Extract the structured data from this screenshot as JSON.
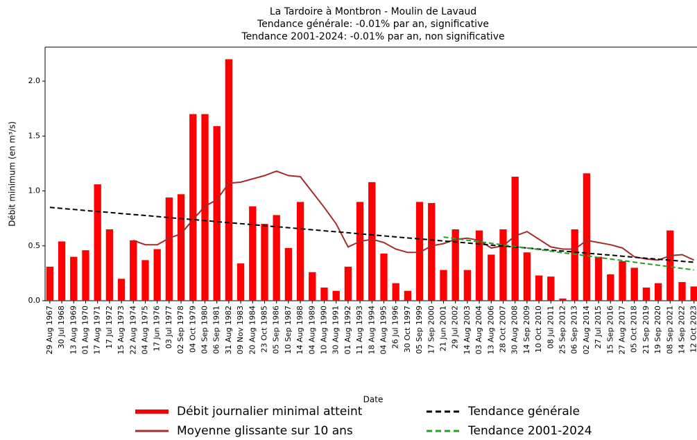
{
  "chart_data": {
    "type": "bar",
    "title": "La Tardoire à Montbron - Moulin de Lavaud",
    "subtitle": [
      "Tendance générale: -0.01% par an, significative",
      "Tendance 2001-2024: -0.01% par an, non significative"
    ],
    "x_label": "Date",
    "y_label": "Débit minimum (en m³/s)",
    "categories": [
      "29 Aug 1967",
      "30 Jul 1968",
      "13 Aug 1969",
      "01 Aug 1970",
      "17 Aug 1971",
      "17 Jul 1972",
      "15 Aug 1973",
      "22 Aug 1974",
      "04 Aug 1975",
      "17 Jun 1976",
      "03 Jul 1977",
      "02 Sep 1978",
      "04 Oct 1979",
      "04 Sep 1980",
      "06 Sep 1981",
      "31 Aug 1982",
      "09 Nov 1983",
      "20 Aug 1984",
      "23 Oct 1985",
      "05 Sep 1986",
      "10 Sep 1987",
      "14 Aug 1988",
      "04 Aug 1989",
      "10 Aug 1990",
      "30 Aug 1991",
      "01 Aug 1992",
      "11 Aug 1993",
      "18 Aug 1994",
      "04 Aug 1995",
      "26 Jul 1996",
      "30 Oct 1997",
      "05 Sep 1999",
      "17 Sep 2000",
      "21 Jun 2001",
      "29 Jul 2002",
      "14 Aug 2003",
      "03 Aug 2004",
      "13 Aug 2006",
      "28 Oct 2007",
      "30 Aug 2008",
      "14 Sep 2009",
      "10 Oct 2010",
      "08 Jul 2011",
      "25 Sep 2012",
      "06 Sep 2013",
      "02 Aug 2014",
      "27 Jul 2015",
      "15 Sep 2016",
      "27 Aug 2017",
      "05 Oct 2018",
      "21 Sep 2019",
      "19 Sep 2020",
      "08 Sep 2021",
      "14 Sep 2022",
      "12 Oct 2023"
    ],
    "series": [
      {
        "name": "Débit journalier minimal atteint",
        "type": "bar",
        "color": "#ff0000",
        "values": [
          0.31,
          0.54,
          0.4,
          0.46,
          1.06,
          0.65,
          0.2,
          0.55,
          0.37,
          0.47,
          0.94,
          0.97,
          1.7,
          1.7,
          1.59,
          2.2,
          0.34,
          0.86,
          0.7,
          0.78,
          0.48,
          0.9,
          0.26,
          0.12,
          0.09,
          0.31,
          0.9,
          1.08,
          0.43,
          0.16,
          0.09,
          0.9,
          0.89,
          0.28,
          0.65,
          0.28,
          0.64,
          0.42,
          0.65,
          1.13,
          0.44,
          0.23,
          0.22,
          0.02,
          0.65,
          1.16,
          0.4,
          0.24,
          0.36,
          0.3,
          0.12,
          0.16,
          0.64,
          0.17,
          0.13
        ]
      },
      {
        "name": "Moyenne glissante sur 10 ans",
        "type": "line",
        "color": "#a52a2a",
        "dashed": false,
        "values": [
          null,
          null,
          null,
          null,
          null,
          null,
          null,
          0.55,
          0.51,
          0.51,
          0.57,
          0.61,
          0.74,
          0.86,
          0.92,
          1.07,
          1.08,
          1.11,
          1.14,
          1.18,
          1.14,
          1.13,
          0.99,
          0.85,
          0.7,
          0.49,
          0.54,
          0.56,
          0.53,
          0.47,
          0.44,
          0.44,
          0.5,
          0.52,
          0.56,
          0.57,
          0.55,
          0.48,
          0.5,
          0.59,
          0.63,
          0.56,
          0.49,
          0.47,
          0.47,
          0.55,
          0.53,
          0.51,
          0.48,
          0.4,
          0.38,
          0.37,
          0.41,
          0.42,
          0.37
        ]
      },
      {
        "name": "Tendance générale",
        "type": "line",
        "color": "#000000",
        "dashed": true,
        "values": [
          0.85,
          0.841,
          0.831,
          0.822,
          0.813,
          0.804,
          0.794,
          0.785,
          0.776,
          0.767,
          0.757,
          0.748,
          0.739,
          0.73,
          0.72,
          0.711,
          0.702,
          0.693,
          0.683,
          0.674,
          0.665,
          0.656,
          0.646,
          0.637,
          0.628,
          0.619,
          0.609,
          0.6,
          0.591,
          0.581,
          0.572,
          0.563,
          0.554,
          0.544,
          0.535,
          0.526,
          0.517,
          0.507,
          0.498,
          0.489,
          0.48,
          0.47,
          0.461,
          0.452,
          0.443,
          0.433,
          0.424,
          0.415,
          0.406,
          0.396,
          0.387,
          0.378,
          0.369,
          0.359,
          0.35
        ]
      },
      {
        "name": "Tendance 2001-2024",
        "type": "line",
        "color": "#22a022",
        "dashed": true,
        "values": [
          null,
          null,
          null,
          null,
          null,
          null,
          null,
          null,
          null,
          null,
          null,
          null,
          null,
          null,
          null,
          null,
          null,
          null,
          null,
          null,
          null,
          null,
          null,
          null,
          null,
          null,
          null,
          null,
          null,
          null,
          null,
          null,
          null,
          0.58,
          0.566,
          0.551,
          0.537,
          0.523,
          0.509,
          0.494,
          0.48,
          0.466,
          0.451,
          0.437,
          0.423,
          0.409,
          0.394,
          0.38,
          0.366,
          0.351,
          0.337,
          0.323,
          0.309,
          0.294,
          0.28
        ]
      }
    ],
    "ylim": [
      0,
      2.31
    ],
    "yticks": [
      {
        "value": 0,
        "label": "0.0"
      },
      0.5,
      {
        "value": 1,
        "label": "1.0"
      },
      1.5,
      {
        "value": 2,
        "label": "2.0"
      }
    ],
    "legend": "bottom"
  }
}
